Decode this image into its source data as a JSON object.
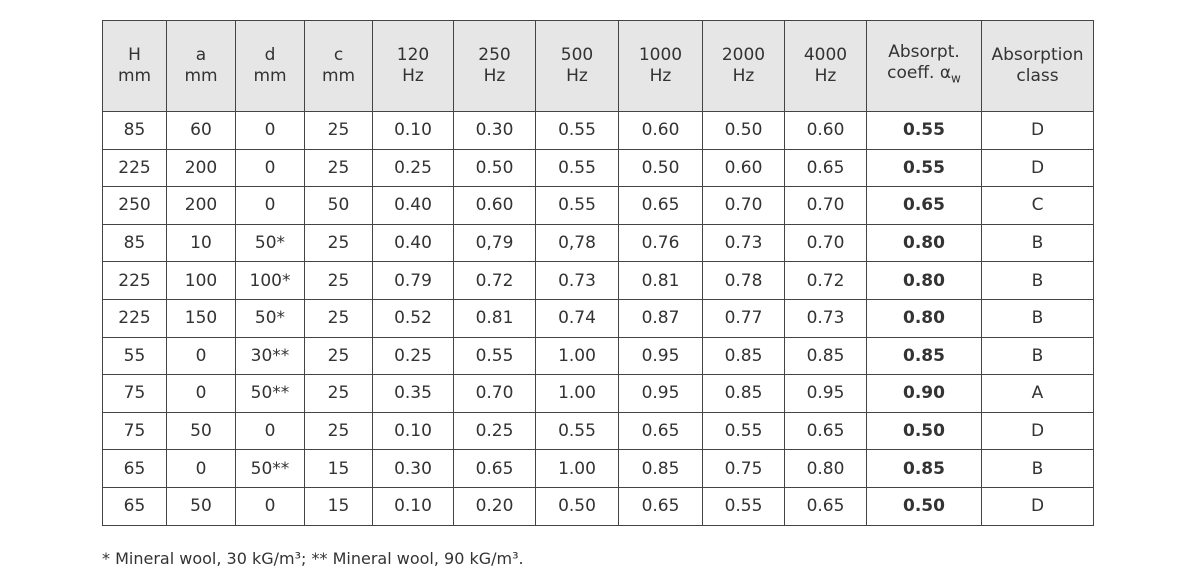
{
  "table": {
    "header": [
      {
        "top": "H",
        "bottom": "mm"
      },
      {
        "top": "a",
        "bottom": "mm"
      },
      {
        "top": "d",
        "bottom": "mm"
      },
      {
        "top": "c",
        "bottom": "mm"
      },
      {
        "top": "120",
        "bottom": "Hz"
      },
      {
        "top": "250",
        "bottom": "Hz"
      },
      {
        "top": "500",
        "bottom": "Hz"
      },
      {
        "top": "1000",
        "bottom": "Hz"
      },
      {
        "top": "2000",
        "bottom": "Hz"
      },
      {
        "top": "4000",
        "bottom": "Hz"
      },
      {
        "top": "Absorpt.",
        "bottom": "coeff. α",
        "sub": "w"
      },
      {
        "top": "Absorption",
        "bottom": "class"
      }
    ],
    "rows": [
      [
        "85",
        "60",
        "0",
        "25",
        "0.10",
        "0.30",
        "0.55",
        "0.60",
        "0.50",
        "0.60",
        "0.55",
        "D"
      ],
      [
        "225",
        "200",
        "0",
        "25",
        "0.25",
        "0.50",
        "0.55",
        "0.50",
        "0.60",
        "0.65",
        "0.55",
        "D"
      ],
      [
        "250",
        "200",
        "0",
        "50",
        "0.40",
        "0.60",
        "0.55",
        "0.65",
        "0.70",
        "0.70",
        "0.65",
        "C"
      ],
      [
        "85",
        "10",
        "50*",
        "25",
        "0.40",
        "0,79",
        "0,78",
        "0.76",
        "0.73",
        "0.70",
        "0.80",
        "B"
      ],
      [
        "225",
        "100",
        "100*",
        "25",
        "0.79",
        "0.72",
        "0.73",
        "0.81",
        "0.78",
        "0.72",
        "0.80",
        "B"
      ],
      [
        "225",
        "150",
        "50*",
        "25",
        "0.52",
        "0.81",
        "0.74",
        "0.87",
        "0.77",
        "0.73",
        "0.80",
        "B"
      ],
      [
        "55",
        "0",
        "30**",
        "25",
        "0.25",
        "0.55",
        "1.00",
        "0.95",
        "0.85",
        "0.85",
        "0.85",
        "B"
      ],
      [
        "75",
        "0",
        "50**",
        "25",
        "0.35",
        "0.70",
        "1.00",
        "0.95",
        "0.85",
        "0.95",
        "0.90",
        "A"
      ],
      [
        "75",
        "50",
        "0",
        "25",
        "0.10",
        "0.25",
        "0.55",
        "0.65",
        "0.55",
        "0.65",
        "0.50",
        "D"
      ],
      [
        "65",
        "0",
        "50**",
        "15",
        "0.30",
        "0.65",
        "1.00",
        "0.85",
        "0.75",
        "0.80",
        "0.85",
        "B"
      ],
      [
        "65",
        "50",
        "0",
        "15",
        "0.10",
        "0.20",
        "0.50",
        "0.65",
        "0.55",
        "0.65",
        "0.50",
        "D"
      ]
    ]
  },
  "footnote": "* Mineral wool, 30 kG/m³; ** Mineral wool, 90 kG/m³."
}
